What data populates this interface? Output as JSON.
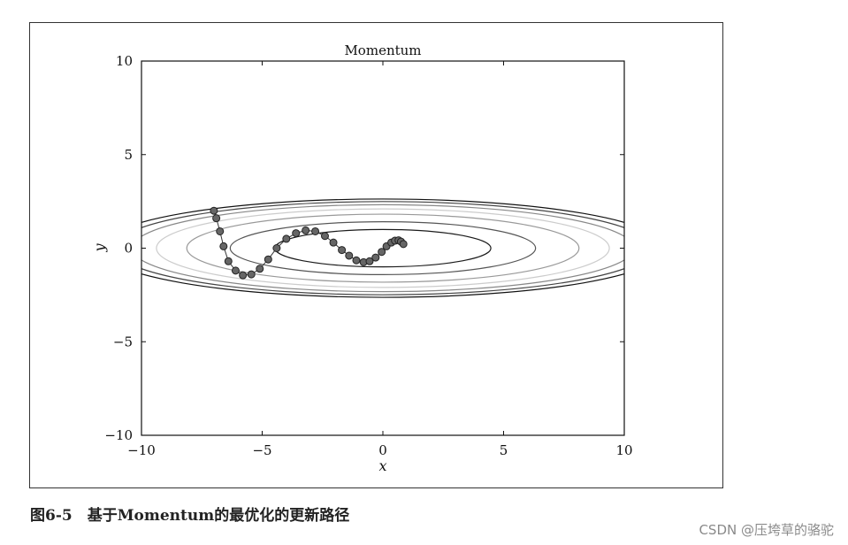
{
  "caption": "图6-5　基于Momentum的最优化的更新路径",
  "watermark": "CSDN @压垮草的骆驼",
  "chart_data": {
    "type": "line",
    "title": "Momentum",
    "xlabel": "x",
    "ylabel": "y",
    "xlim": [
      -10,
      10
    ],
    "ylim": [
      -10,
      10
    ],
    "x_ticks": [
      -10,
      -5,
      0,
      5,
      10
    ],
    "y_ticks": [
      -10,
      -5,
      0,
      5,
      10
    ],
    "x_tick_labels": [
      "−10",
      "−5",
      "0",
      "5",
      "10"
    ],
    "y_tick_labels": [
      "−10",
      "−5",
      "0",
      "5",
      "10"
    ],
    "grid": false,
    "contours": {
      "function": "f(x,y) = x^2/20 + y^2",
      "levels": [
        {
          "level": 1.0,
          "color": "#1a1a1a"
        },
        {
          "level": 2.0,
          "color": "#555555"
        },
        {
          "level": 3.3,
          "color": "#999999"
        },
        {
          "level": 4.4,
          "color": "#cccccc"
        },
        {
          "level": 5.4,
          "color": "#888888"
        },
        {
          "level": 6.2,
          "color": "#444444"
        },
        {
          "level": 6.9,
          "color": "#111111"
        }
      ]
    },
    "series": [
      {
        "color": "#666666",
        "x": [
          -7.0,
          -6.9,
          -6.75,
          -6.6,
          -6.4,
          -6.1,
          -5.8,
          -5.45,
          -5.1,
          -4.75,
          -4.4,
          -4.0,
          -3.6,
          -3.2,
          -2.8,
          -2.4,
          -2.05,
          -1.7,
          -1.4,
          -1.1,
          -0.8,
          -0.55,
          -0.3,
          -0.05,
          0.15,
          0.35,
          0.5,
          0.65,
          0.75,
          0.85
        ],
        "y": [
          2.0,
          1.6,
          0.9,
          0.1,
          -0.7,
          -1.2,
          -1.45,
          -1.4,
          -1.1,
          -0.6,
          0.0,
          0.5,
          0.8,
          0.95,
          0.9,
          0.65,
          0.3,
          -0.1,
          -0.4,
          -0.65,
          -0.75,
          -0.7,
          -0.5,
          -0.2,
          0.1,
          0.3,
          0.4,
          0.42,
          0.35,
          0.22
        ]
      }
    ]
  }
}
